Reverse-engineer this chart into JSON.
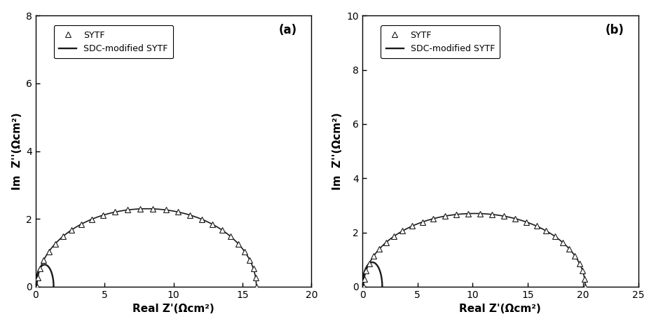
{
  "panel_a": {
    "label": "(a)",
    "xlim": [
      0,
      20
    ],
    "ylim": [
      0,
      8
    ],
    "xticks": [
      0,
      5,
      10,
      15,
      20
    ],
    "yticks": [
      0,
      2,
      4,
      6,
      8
    ],
    "xlabel": "Real Z'(Ωcm²)",
    "ylabel": "Im  Z''(Ωcm²)",
    "sytf_x_start": 0.1,
    "sytf_x_end": 16.0,
    "sytf_peak_y": 2.3,
    "sdc_x_start": 0.0,
    "sdc_x_end": 1.3,
    "sdc_peak_y": 0.65,
    "n_sytf_markers": 28
  },
  "panel_b": {
    "label": "(b)",
    "xlim": [
      0,
      25
    ],
    "ylim": [
      0,
      10
    ],
    "xticks": [
      0,
      5,
      10,
      15,
      20,
      25
    ],
    "yticks": [
      0,
      2,
      4,
      6,
      8,
      10
    ],
    "xlabel": "Real Z'(Ωcm²)",
    "ylabel": "Im  Z''(Ωcm²)",
    "sytf_x_start": 0.1,
    "sytf_x_end": 20.2,
    "sytf_peak_y": 2.7,
    "sdc_x_start": 0.0,
    "sdc_x_end": 1.8,
    "sdc_peak_y": 0.9,
    "n_sytf_markers": 30
  },
  "legend_sytf": "SYTF",
  "legend_sdc": "SDC-modified SYTF",
  "line_color": "#1a1a1a",
  "bg_color": "#ffffff",
  "marker": "^",
  "markersize": 6,
  "linewidth": 1.2
}
